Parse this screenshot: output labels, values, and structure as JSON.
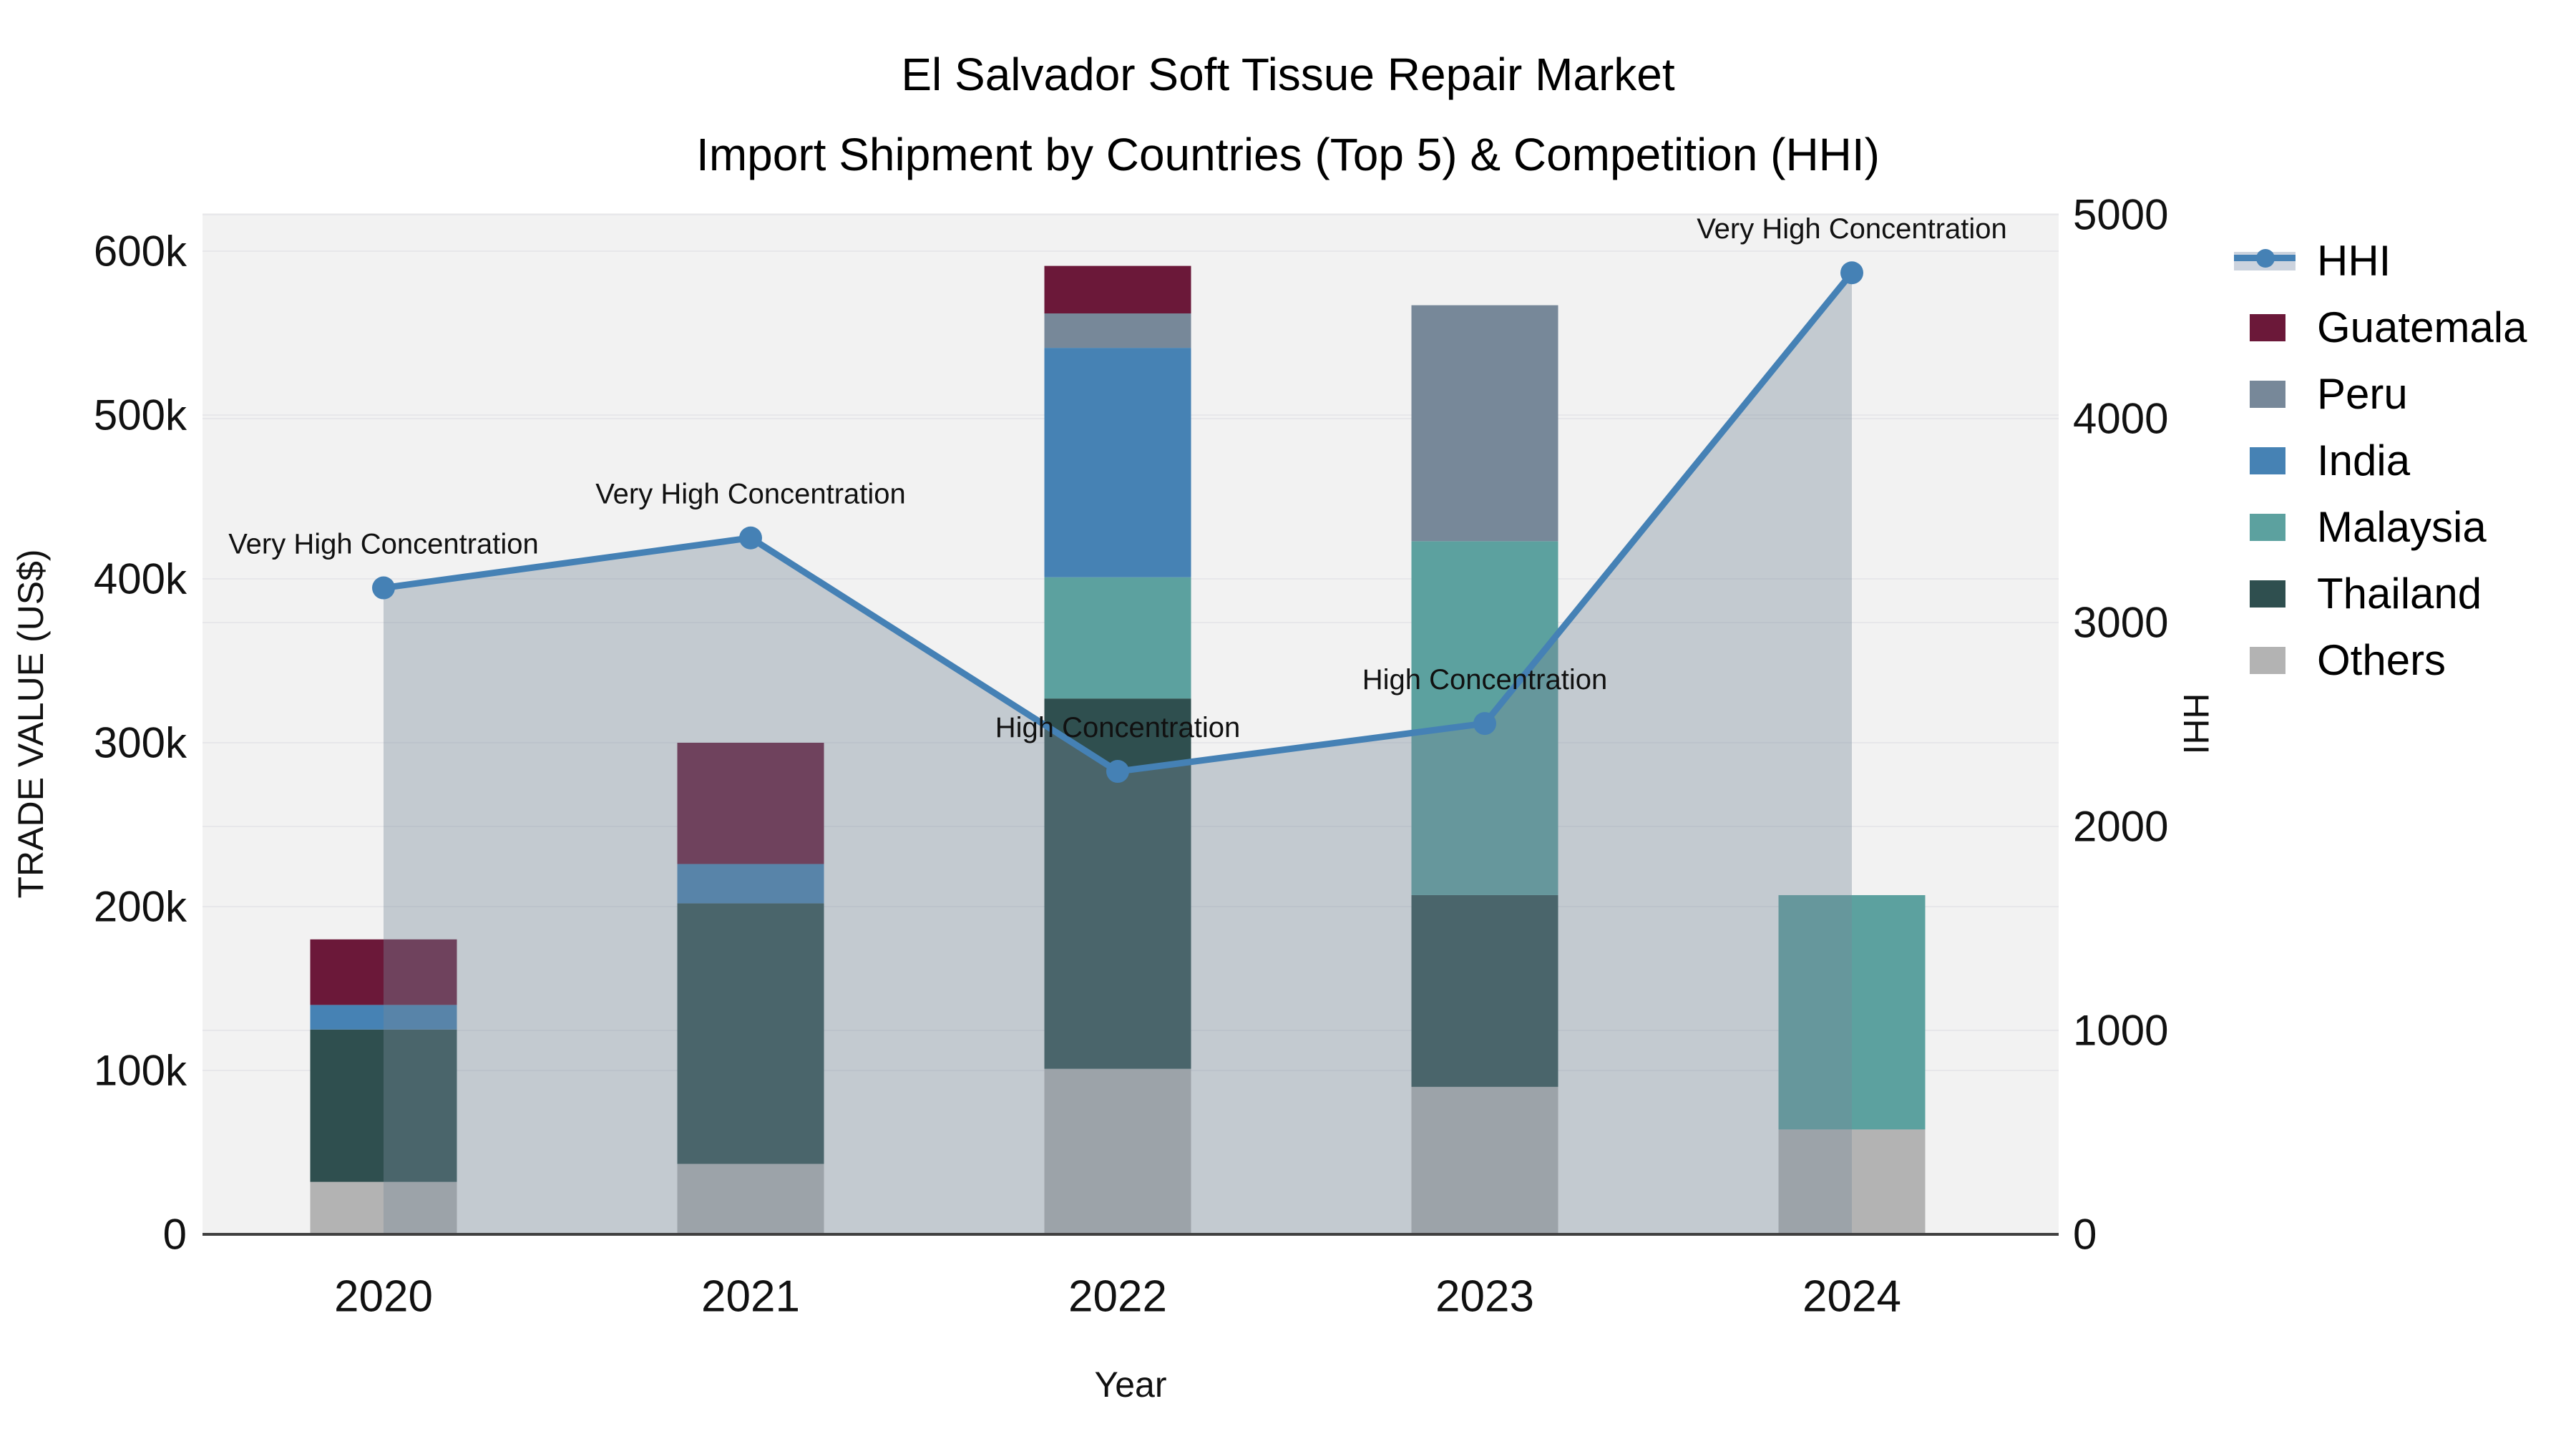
{
  "title": {
    "line1": "El Salvador Soft Tissue Repair Market",
    "line2": "Import Shipment by Countries (Top 5) & Competition (HHI)"
  },
  "axes": {
    "x": {
      "title": "Year",
      "ticks": [
        "2020",
        "2021",
        "2022",
        "2023",
        "2024"
      ]
    },
    "y_left": {
      "title": "TRADE VALUE (US$)",
      "ticks": [
        "0",
        "100k",
        "200k",
        "300k",
        "400k",
        "500k",
        "600k"
      ]
    },
    "y_right": {
      "title": "HHI",
      "ticks": [
        "0",
        "1000",
        "2000",
        "3000",
        "4000",
        "5000"
      ]
    }
  },
  "legend": {
    "items": [
      {
        "label": "HHI",
        "kind": "line",
        "color": "#4581b5"
      },
      {
        "label": "Guatemala",
        "kind": "swatch",
        "color": "#6b1839"
      },
      {
        "label": "Peru",
        "kind": "swatch",
        "color": "#778899"
      },
      {
        "label": "India",
        "kind": "swatch",
        "color": "#4682b4"
      },
      {
        "label": "Malaysia",
        "kind": "swatch",
        "color": "#5ca19f"
      },
      {
        "label": "Thailand",
        "kind": "swatch",
        "color": "#2f4f4f"
      },
      {
        "label": "Others",
        "kind": "swatch",
        "color": "#b3b3b3"
      }
    ]
  },
  "chart_data": {
    "type": "combo-stacked-bar-line",
    "title": "El Salvador Soft Tissue Repair Market — Import Shipment by Countries (Top 5) & Competition (HHI)",
    "xlabel": "Year",
    "ylabel_left": "TRADE VALUE (US$)",
    "ylabel_right": "HHI",
    "categories": [
      "2020",
      "2021",
      "2022",
      "2023",
      "2024"
    ],
    "ylim_left": [
      0,
      600000
    ],
    "ylim_right": [
      0,
      5000
    ],
    "grid": true,
    "legend_position": "right",
    "stack_order_bottom_to_top": [
      "Others",
      "Thailand",
      "Malaysia",
      "India",
      "Peru",
      "Guatemala"
    ],
    "series": [
      {
        "name": "Guatemala",
        "type": "bar",
        "color": "#6b1839",
        "values": [
          40000,
          74000,
          29000,
          0,
          0
        ]
      },
      {
        "name": "Peru",
        "type": "bar",
        "color": "#778899",
        "values": [
          0,
          0,
          21000,
          144000,
          0
        ]
      },
      {
        "name": "India",
        "type": "bar",
        "color": "#4682b4",
        "values": [
          15000,
          24000,
          140000,
          0,
          0
        ]
      },
      {
        "name": "Malaysia",
        "type": "bar",
        "color": "#5ca19f",
        "values": [
          0,
          0,
          74000,
          216000,
          143000
        ]
      },
      {
        "name": "Thailand",
        "type": "bar",
        "color": "#2f4f4f",
        "values": [
          93000,
          159000,
          226000,
          117000,
          0
        ]
      },
      {
        "name": "Others",
        "type": "bar",
        "color": "#b3b3b3",
        "values": [
          32000,
          43000,
          101000,
          90000,
          64000
        ]
      },
      {
        "name": "HHI",
        "type": "line",
        "axis": "right",
        "color": "#4581b5",
        "area_color": "rgba(119,136,153,0.38)",
        "values": [
          3170,
          3415,
          2270,
          2505,
          4715
        ]
      }
    ],
    "bar_totals": [
      180000,
      300000,
      591000,
      567000,
      207000
    ],
    "annotations": [
      {
        "x": "2020",
        "text": "Very High Concentration"
      },
      {
        "x": "2021",
        "text": "Very High Concentration"
      },
      {
        "x": "2022",
        "text": "High Concentration"
      },
      {
        "x": "2023",
        "text": "High Concentration"
      },
      {
        "x": "2024",
        "text": "Very High Concentration"
      }
    ],
    "plot_bg": "#f2f2f2",
    "gridline_color": "#e7e7ea",
    "axis_line_color": "#404040"
  }
}
